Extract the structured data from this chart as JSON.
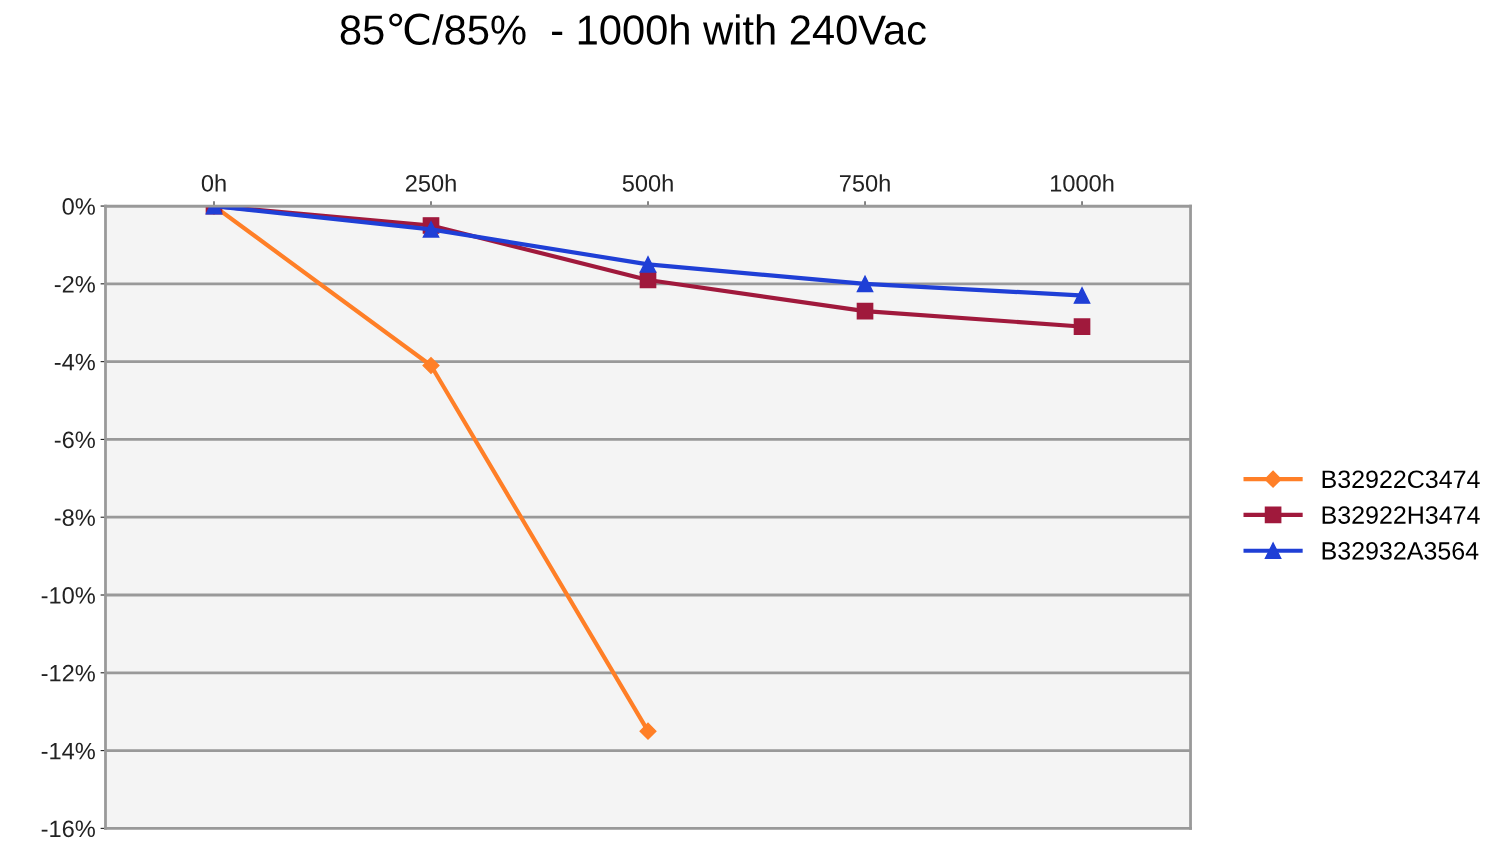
{
  "chart_data": {
    "type": "line",
    "title": "85℃/85%  - 1000h with 240Vac",
    "categories": [
      "0h",
      "250h",
      "500h",
      "750h",
      "1000h"
    ],
    "series": [
      {
        "name": "B32922C3474",
        "color": "#ff7f27",
        "marker": "diamond",
        "values": [
          0,
          -4.1,
          -13.5,
          null,
          null
        ]
      },
      {
        "name": "B32922H3474",
        "color": "#a0193c",
        "marker": "square",
        "values": [
          0,
          -0.5,
          -1.9,
          -2.7,
          -3.1
        ]
      },
      {
        "name": "B32932A3564",
        "color": "#1f3fd6",
        "marker": "triangle",
        "values": [
          0,
          -0.6,
          -1.5,
          -2.0,
          -2.3
        ]
      }
    ],
    "ylim": [
      -16,
      0
    ],
    "yticks": [
      {
        "value": 0,
        "label": "0%"
      },
      {
        "value": -2,
        "label": "-2%"
      },
      {
        "value": -4,
        "label": "-4%"
      },
      {
        "value": -6,
        "label": "-6%"
      },
      {
        "value": -8,
        "label": "-8%"
      },
      {
        "value": -10,
        "label": "-10%"
      },
      {
        "value": -12,
        "label": "-12%"
      },
      {
        "value": -14,
        "label": "-14%"
      },
      {
        "value": -16,
        "label": "-16%"
      }
    ],
    "grid": "y",
    "legend": "right",
    "line_style": "solid"
  }
}
